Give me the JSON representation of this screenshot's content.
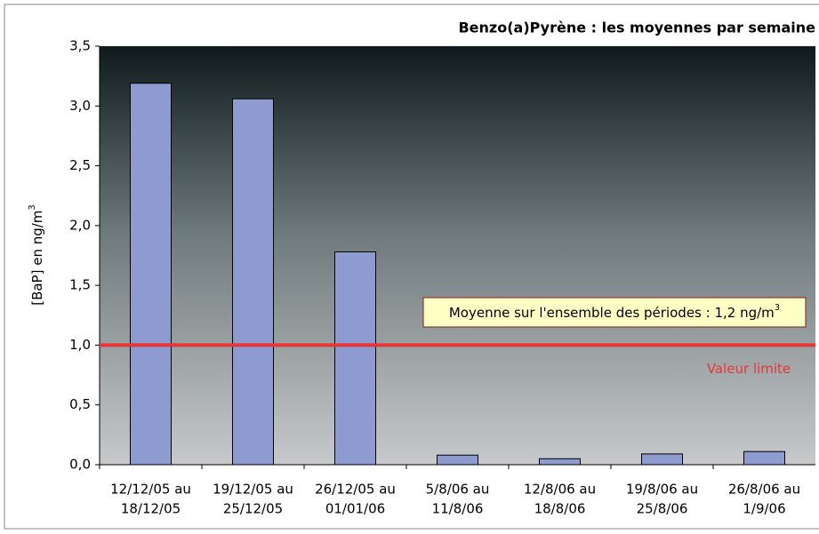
{
  "chart_data": {
    "type": "bar",
    "title": "Benzo(a)Pyrène : les moyennes par semaine",
    "y_label": {
      "text": "[BaP] en ng/m",
      "sup": "3"
    },
    "categories": [
      [
        "12/12/05 au",
        "18/12/05"
      ],
      [
        "19/12/05 au",
        "25/12/05"
      ],
      [
        "26/12/05 au",
        "01/01/06"
      ],
      [
        "5/8/06 au",
        "11/8/06"
      ],
      [
        "12/8/06 au",
        "18/8/06"
      ],
      [
        "19/8/06 au",
        "25/8/06"
      ],
      [
        "26/8/06 au",
        "1/9/06"
      ]
    ],
    "values": [
      3.19,
      3.06,
      1.78,
      0.08,
      0.05,
      0.09,
      0.11
    ],
    "color": "#8e9bd1",
    "ylim": [
      0,
      3.5
    ],
    "yticks": [
      {
        "value": 0,
        "label": "0,0"
      },
      {
        "value": 0.5,
        "label": "0,5"
      },
      {
        "value": 1,
        "label": "1,0"
      },
      {
        "value": 1.5,
        "label": "1,5"
      },
      {
        "value": 2,
        "label": "2,0"
      },
      {
        "value": 2.5,
        "label": "2,5"
      },
      {
        "value": 3,
        "label": "3,0"
      },
      {
        "value": 3.5,
        "label": "3,5"
      }
    ],
    "limit": {
      "value": 1,
      "label": "Valeur limite",
      "color": "#e8353a"
    },
    "annotation": {
      "text": "Moyenne sur l'ensemble des périodes : 1,2 ng/m",
      "sup": "3"
    }
  }
}
